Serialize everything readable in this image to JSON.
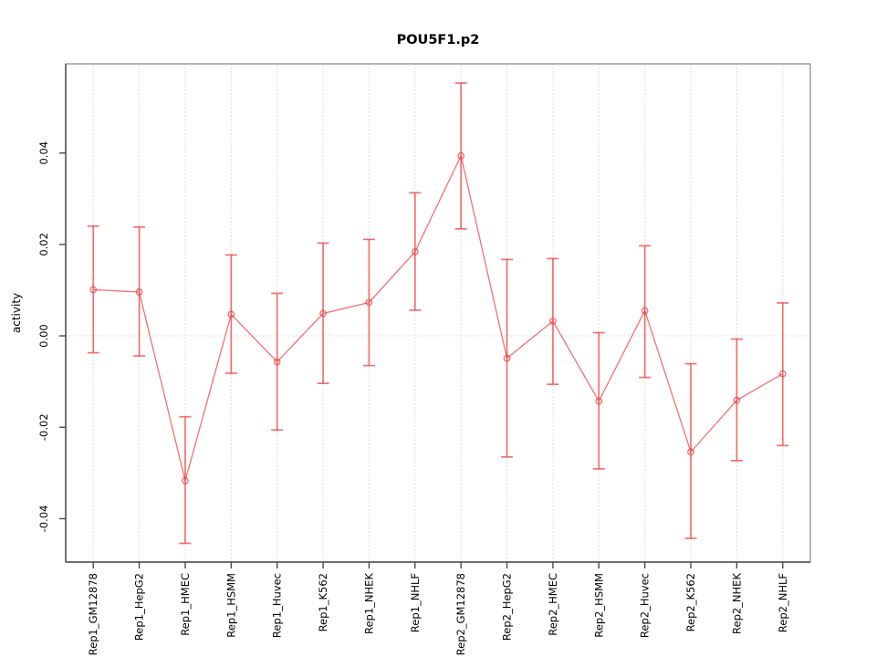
{
  "figure": {
    "background": "#ffffff"
  },
  "chart_data": {
    "type": "line",
    "title": "POU5F1.p2",
    "xlabel": "",
    "ylabel": "activity",
    "categories": [
      "Rep1_GM12878",
      "Rep1_HepG2",
      "Rep1_HMEC",
      "Rep1_HSMM",
      "Rep1_Huvec",
      "Rep1_K562",
      "Rep1_NHEK",
      "Rep1_NHLF",
      "Rep2_GM12878",
      "Rep2_HepG2",
      "Rep2_HMEC",
      "Rep2_HSMM",
      "Rep2_Huvec",
      "Rep2_K562",
      "Rep2_NHEK",
      "Rep2_NHLF"
    ],
    "series": [
      {
        "name": "activity",
        "marker": "open-circle",
        "values": [
          0.0101,
          0.0096,
          -0.0317,
          0.0047,
          -0.0057,
          0.0049,
          0.0073,
          0.0184,
          0.0394,
          -0.0049,
          0.0032,
          -0.0143,
          0.0055,
          -0.0254,
          -0.0141,
          -0.0083
        ],
        "err_low": [
          -0.0037,
          -0.0044,
          -0.0454,
          -0.0082,
          -0.0206,
          -0.0104,
          -0.0065,
          0.0056,
          0.0234,
          -0.0265,
          -0.0106,
          -0.0291,
          -0.0091,
          -0.0443,
          -0.0273,
          -0.024
        ],
        "err_high": [
          0.024,
          0.0238,
          -0.0177,
          0.0177,
          0.0093,
          0.0203,
          0.0211,
          0.0313,
          0.0553,
          0.0167,
          0.0169,
          0.0007,
          0.0197,
          -0.0061,
          -0.0007,
          0.0072
        ]
      }
    ],
    "ylim": [
      -0.0495,
      0.0595
    ],
    "ytick_values": [
      -0.04,
      -0.02,
      0,
      0.02,
      0.04
    ],
    "ytick_labels": [
      "-0.04",
      "-0.02",
      "0.00",
      "0.02",
      "0.04"
    ],
    "grid": {
      "vertical": "dotted line at every category",
      "horizontal": "dotted line at y = 0 only"
    },
    "legend": "none",
    "colors": {
      "series": "rgba(241,66,66,0.75)",
      "grid": "#d6d6d6",
      "box": "#9a9a9a",
      "axis": "#4a4a4a",
      "text": "#000000"
    }
  }
}
